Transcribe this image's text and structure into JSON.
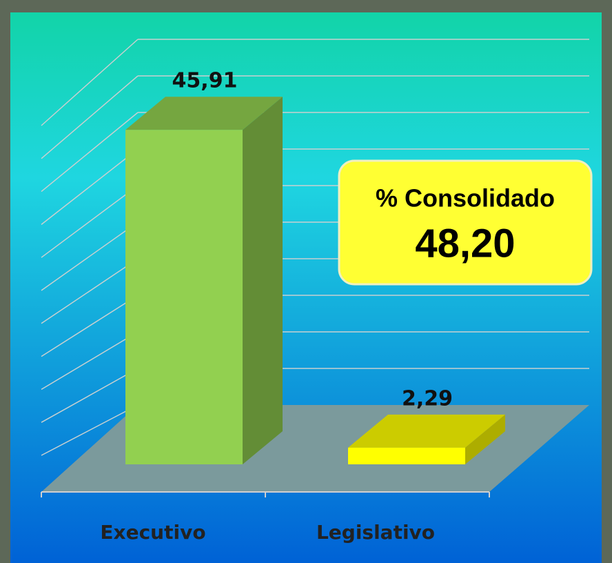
{
  "chart_data": {
    "type": "bar3d",
    "categories": [
      "Executivo",
      "Legislativo"
    ],
    "values": [
      45.91,
      2.29
    ],
    "value_labels": [
      "45,91",
      "2,29"
    ],
    "colors": [
      "#92d050",
      "#ffff00"
    ],
    "ylim": [
      0,
      50
    ],
    "yticks": [
      0,
      5,
      10,
      15,
      20,
      25,
      30,
      35,
      40,
      45,
      50
    ],
    "grid": true,
    "annotation": {
      "title": "% Consolidado",
      "text": "48,20"
    }
  }
}
